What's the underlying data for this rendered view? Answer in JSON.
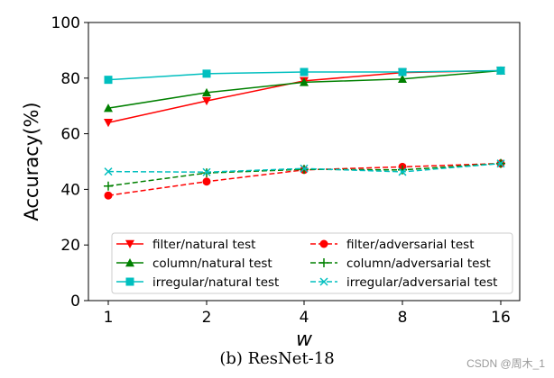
{
  "chart_data": {
    "type": "line",
    "x": [
      1,
      2,
      4,
      8,
      16
    ],
    "x_tick_labels": [
      "1",
      "2",
      "4",
      "8",
      "16"
    ],
    "xlabel": "w",
    "ylabel": "Accuracy(%)",
    "ylim": [
      0,
      100
    ],
    "y_ticks": [
      0,
      20,
      40,
      60,
      80,
      100
    ],
    "grid": false,
    "legend_position": "lower-center",
    "series": [
      {
        "name": "filter/natural test",
        "color": "#ff0000",
        "marker": "triangle-down",
        "linestyle": "solid",
        "values": [
          64,
          71.8,
          79,
          82,
          82.7
        ]
      },
      {
        "name": "column/natural test",
        "color": "#008000",
        "marker": "triangle-up",
        "linestyle": "solid",
        "values": [
          69.2,
          74.8,
          78.5,
          79.7,
          82.7
        ]
      },
      {
        "name": "irregular/natural test",
        "color": "#00bfbf",
        "marker": "square",
        "linestyle": "solid",
        "values": [
          79.4,
          81.6,
          82.2,
          82.2,
          82.7
        ]
      },
      {
        "name": "filter/adversarial test",
        "color": "#ff0000",
        "marker": "circle",
        "linestyle": "dashed",
        "values": [
          37.8,
          42.8,
          47.0,
          48.1,
          49.3
        ]
      },
      {
        "name": "column/adversarial test",
        "color": "#008000",
        "marker": "plus",
        "linestyle": "dashed",
        "values": [
          41.2,
          45.9,
          47.2,
          47.0,
          49.3
        ]
      },
      {
        "name": "irregular/adversarial test",
        "color": "#00bfbf",
        "marker": "x",
        "linestyle": "dashed",
        "values": [
          46.4,
          46.2,
          47.5,
          46.3,
          49.3
        ]
      }
    ]
  },
  "caption": "(b) ResNet-18",
  "watermark": "CSDN @周木_1"
}
